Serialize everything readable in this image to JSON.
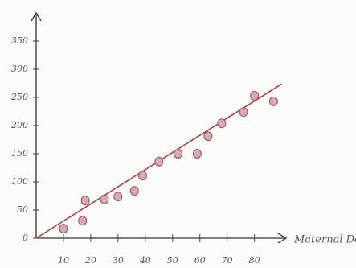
{
  "chart_data": {
    "type": "scatter",
    "x_label": "Maternal Deaths",
    "x": [
      10,
      17,
      18,
      25,
      30,
      36,
      39,
      45,
      52,
      59,
      63,
      68,
      76,
      80,
      87
    ],
    "values": [
      17,
      31,
      67,
      69,
      74,
      84,
      111,
      136,
      150,
      150,
      181,
      204,
      224,
      253,
      243
    ],
    "color": "#d8aab4",
    "trendline": {
      "x": [
        0,
        90
      ],
      "y": [
        0,
        274
      ],
      "color": "#a0404f"
    },
    "xlim": [
      0,
      91
    ],
    "ylim": [
      0,
      400
    ],
    "xticks": [
      10,
      20,
      30,
      40,
      50,
      60,
      70,
      80
    ],
    "yticks": [
      0,
      50,
      100,
      150,
      200,
      250,
      300,
      350
    ],
    "grid": false
  }
}
